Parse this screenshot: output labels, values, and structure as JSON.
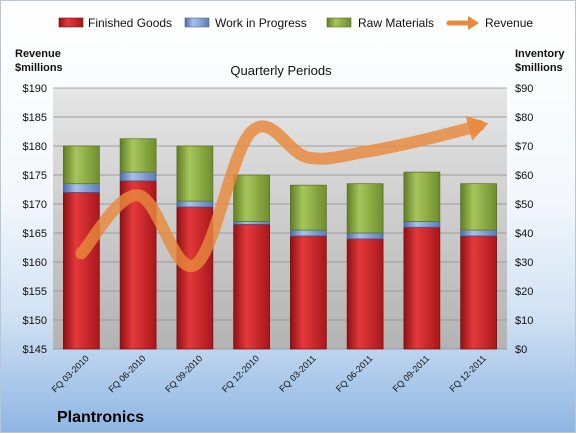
{
  "chart_data": {
    "type": "bar",
    "stacked": true,
    "subtitle": "Quarterly Periods",
    "company": "Plantronics",
    "y_left_label": [
      "Revenue",
      "$millions"
    ],
    "y_right_label": [
      "Inventory",
      "$millions"
    ],
    "y_left_range": [
      145,
      190
    ],
    "y_left_ticks": [
      "$190",
      "$185",
      "$180",
      "$175",
      "$170",
      "$165",
      "$160",
      "$155",
      "$150",
      "$145"
    ],
    "y_right_range": [
      0,
      90
    ],
    "y_right_ticks": [
      "$90",
      "$80",
      "$70",
      "$60",
      "$50",
      "$40",
      "$30",
      "$20",
      "$10",
      "$0"
    ],
    "categories": [
      "FQ 03-2010",
      "FQ 06-2010",
      "FQ 09-2010",
      "FQ 12-2010",
      "FQ 03-2011",
      "FQ 06-2011",
      "FQ 09-2011",
      "FQ 12-2011"
    ],
    "series": [
      {
        "name": "Finished Goods",
        "axis": "right",
        "color": "#c0262b",
        "values": [
          54,
          58,
          49,
          43,
          39,
          38,
          42,
          39
        ]
      },
      {
        "name": "Work in Progress",
        "axis": "right",
        "color": "#6e8fc8",
        "values": [
          3,
          3,
          2,
          1,
          2,
          2,
          2,
          2
        ]
      },
      {
        "name": "Raw Materials",
        "axis": "right",
        "color": "#8cad42",
        "values": [
          13,
          11.5,
          19,
          16,
          15.5,
          17,
          17,
          16
        ]
      },
      {
        "name": "Revenue",
        "axis": "left",
        "type": "line",
        "color": "#e8893c",
        "values": [
          161.5,
          171.5,
          159.5,
          182.5,
          178,
          179,
          181,
          183.5
        ]
      }
    ],
    "grid": true,
    "legend_position": "top"
  }
}
